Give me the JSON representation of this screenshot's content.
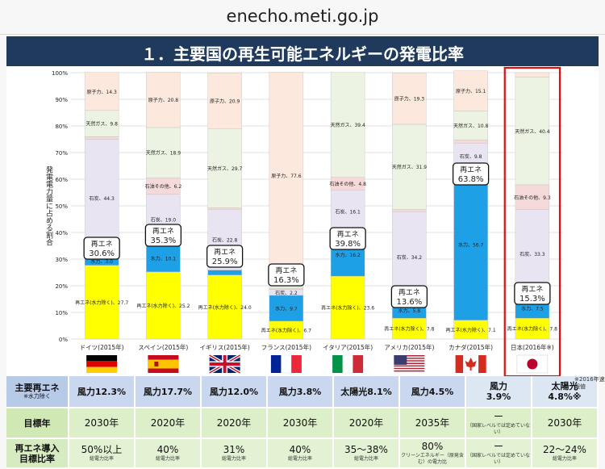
{
  "url": "enecho.meti.go.jp",
  "banner_title": "１．主要国の再生可能エネルギーの発電比率",
  "note": "※2016年速報値",
  "chart_data": {
    "type": "bar",
    "stacked": true,
    "ylabel": "発電電力量に占める割合",
    "ylim": [
      0,
      100
    ],
    "yticks": [
      "0%",
      "10%",
      "20%",
      "30%",
      "40%",
      "50%",
      "60%",
      "70%",
      "80%",
      "90%",
      "100%"
    ],
    "grid": true,
    "categories": [
      "ドイツ(2015年)",
      "スペイン(2015年)",
      "イギリス(2015年)",
      "フランス(2015年)",
      "イタリア(2015年)",
      "アメリカ(2015年)",
      "カナダ(2015年)",
      "日本(2016年※)"
    ],
    "flags": [
      "germany",
      "spain",
      "uk",
      "france",
      "italy",
      "usa",
      "canada",
      "japan"
    ],
    "highlight_index": 7,
    "series": [
      {
        "name": "再エネ(水力除く)",
        "color": "#ffff00",
        "values": [
          27.7,
          25.2,
          24.0,
          6.7,
          23.6,
          7.8,
          7.1,
          7.8
        ]
      },
      {
        "name": "水力",
        "color": "#1ea0e6",
        "values": [
          3.0,
          10.1,
          1.9,
          9.7,
          16.2,
          5.8,
          56.7,
          7.5
        ]
      },
      {
        "name": "石炭",
        "color": "#e9e4f2",
        "values": [
          44.3,
          19.0,
          22.8,
          2.2,
          16.1,
          34.2,
          9.8,
          33.3
        ]
      },
      {
        "name": "石油その他",
        "color": "#f6dada",
        "values": [
          1.0,
          6.2,
          0.6,
          0.5,
          4.8,
          0.9,
          1.2,
          9.3
        ]
      },
      {
        "name": "天然ガス",
        "color": "#edf3e2",
        "values": [
          9.8,
          18.9,
          29.7,
          3.5,
          39.4,
          31.9,
          10.8,
          40.4
        ]
      },
      {
        "name": "原子力",
        "color": "#fce8dc",
        "values": [
          14.3,
          20.8,
          20.9,
          77.6,
          0,
          19.3,
          15.1,
          1.7
        ]
      }
    ],
    "bar_labels": [
      [
        "再エネ(水力除く)、27.7",
        "水力、3.0",
        "石炭、44.3",
        "石油その他、1.0",
        "天然ガス、9.8",
        "原子力、14.3"
      ],
      [
        "再エネ(水力除く)、25.2",
        "水力、10.1",
        "石炭、19.0",
        "石油その他、6.2",
        "天然ガス、18.9",
        "原子力、20.8"
      ],
      [
        "再エネ(水力除く)、24.0",
        "水力、1.9",
        "石炭、22.8",
        "石油その他、0.6",
        "天然ガス、29.7",
        "原子力、20.9"
      ],
      [
        "再エネ(水力除く)、6.7",
        "水力、9.7",
        "石炭、2.2",
        "石油その他、0.5",
        "天然ガス、3.5",
        "原子力、77.6"
      ],
      [
        "再エネ(水力除く)、23.6",
        "水力、16.2",
        "石炭、16.1",
        "石油その他、4.8",
        "天然ガス、39.4",
        ""
      ],
      [
        "再エネ(水力除く)、7.8",
        "水力、5.8",
        "石炭、34.2",
        "石油その他、0.9",
        "天然ガス、31.9",
        "原子力、19.3"
      ],
      [
        "再エネ(水力除く)、7.1",
        "水力、56.7",
        "石炭、9.8",
        "石油その他、1.2",
        "天然ガス、10.8",
        "原子力、15.1"
      ],
      [
        "再エネ(水力除く)、7.8",
        "水力、7.5",
        "石炭、33.3",
        "石油その他、9.3",
        "天然ガス、40.4",
        "原子力、1.7"
      ]
    ],
    "callouts": [
      {
        "label": "再エネ",
        "value": "30.6%"
      },
      {
        "label": "再エネ",
        "value": "35.3%"
      },
      {
        "label": "再エネ",
        "value": "25.9%"
      },
      {
        "label": "再エネ",
        "value": "16.3%"
      },
      {
        "label": "再エネ",
        "value": "39.8%"
      },
      {
        "label": "再エネ",
        "value": "13.6%"
      },
      {
        "label": "再エネ",
        "value": "63.8%"
      },
      {
        "label": "再エネ",
        "value": "15.3%"
      }
    ]
  },
  "table": {
    "rows": [
      {
        "header": "主要再エネ",
        "sub": "※水力除く",
        "cells": [
          "風力12.3%",
          "風力17.7%",
          "風力12.0%",
          "風力3.8%",
          "太陽光8.1%",
          "風力4.5%",
          "風力\n3.9%",
          "太陽光\n4.8%※"
        ]
      },
      {
        "header": "目標年",
        "sub": "",
        "cells": [
          "2030年",
          "2020年",
          "2020年",
          "2030年",
          "2020年",
          "2035年",
          "ー",
          "2030年"
        ],
        "subs": [
          "",
          "",
          "",
          "",
          "",
          "",
          "（国家レベルでは定めていない）",
          ""
        ]
      },
      {
        "header": "再エネ導入",
        "sub": "目標比率",
        "cells": [
          "50%以上",
          "40%",
          "31%",
          "40%",
          "35～38%",
          "80%",
          "ー",
          "22～24%"
        ],
        "subs": [
          "総電力比率",
          "総電力比率",
          "総電力比率",
          "総電力比率",
          "総電力比率",
          "クリーンエネルギー（原発含む）の電力比",
          "（国家レベルでは定めていない）",
          "総電力比率"
        ]
      }
    ]
  }
}
